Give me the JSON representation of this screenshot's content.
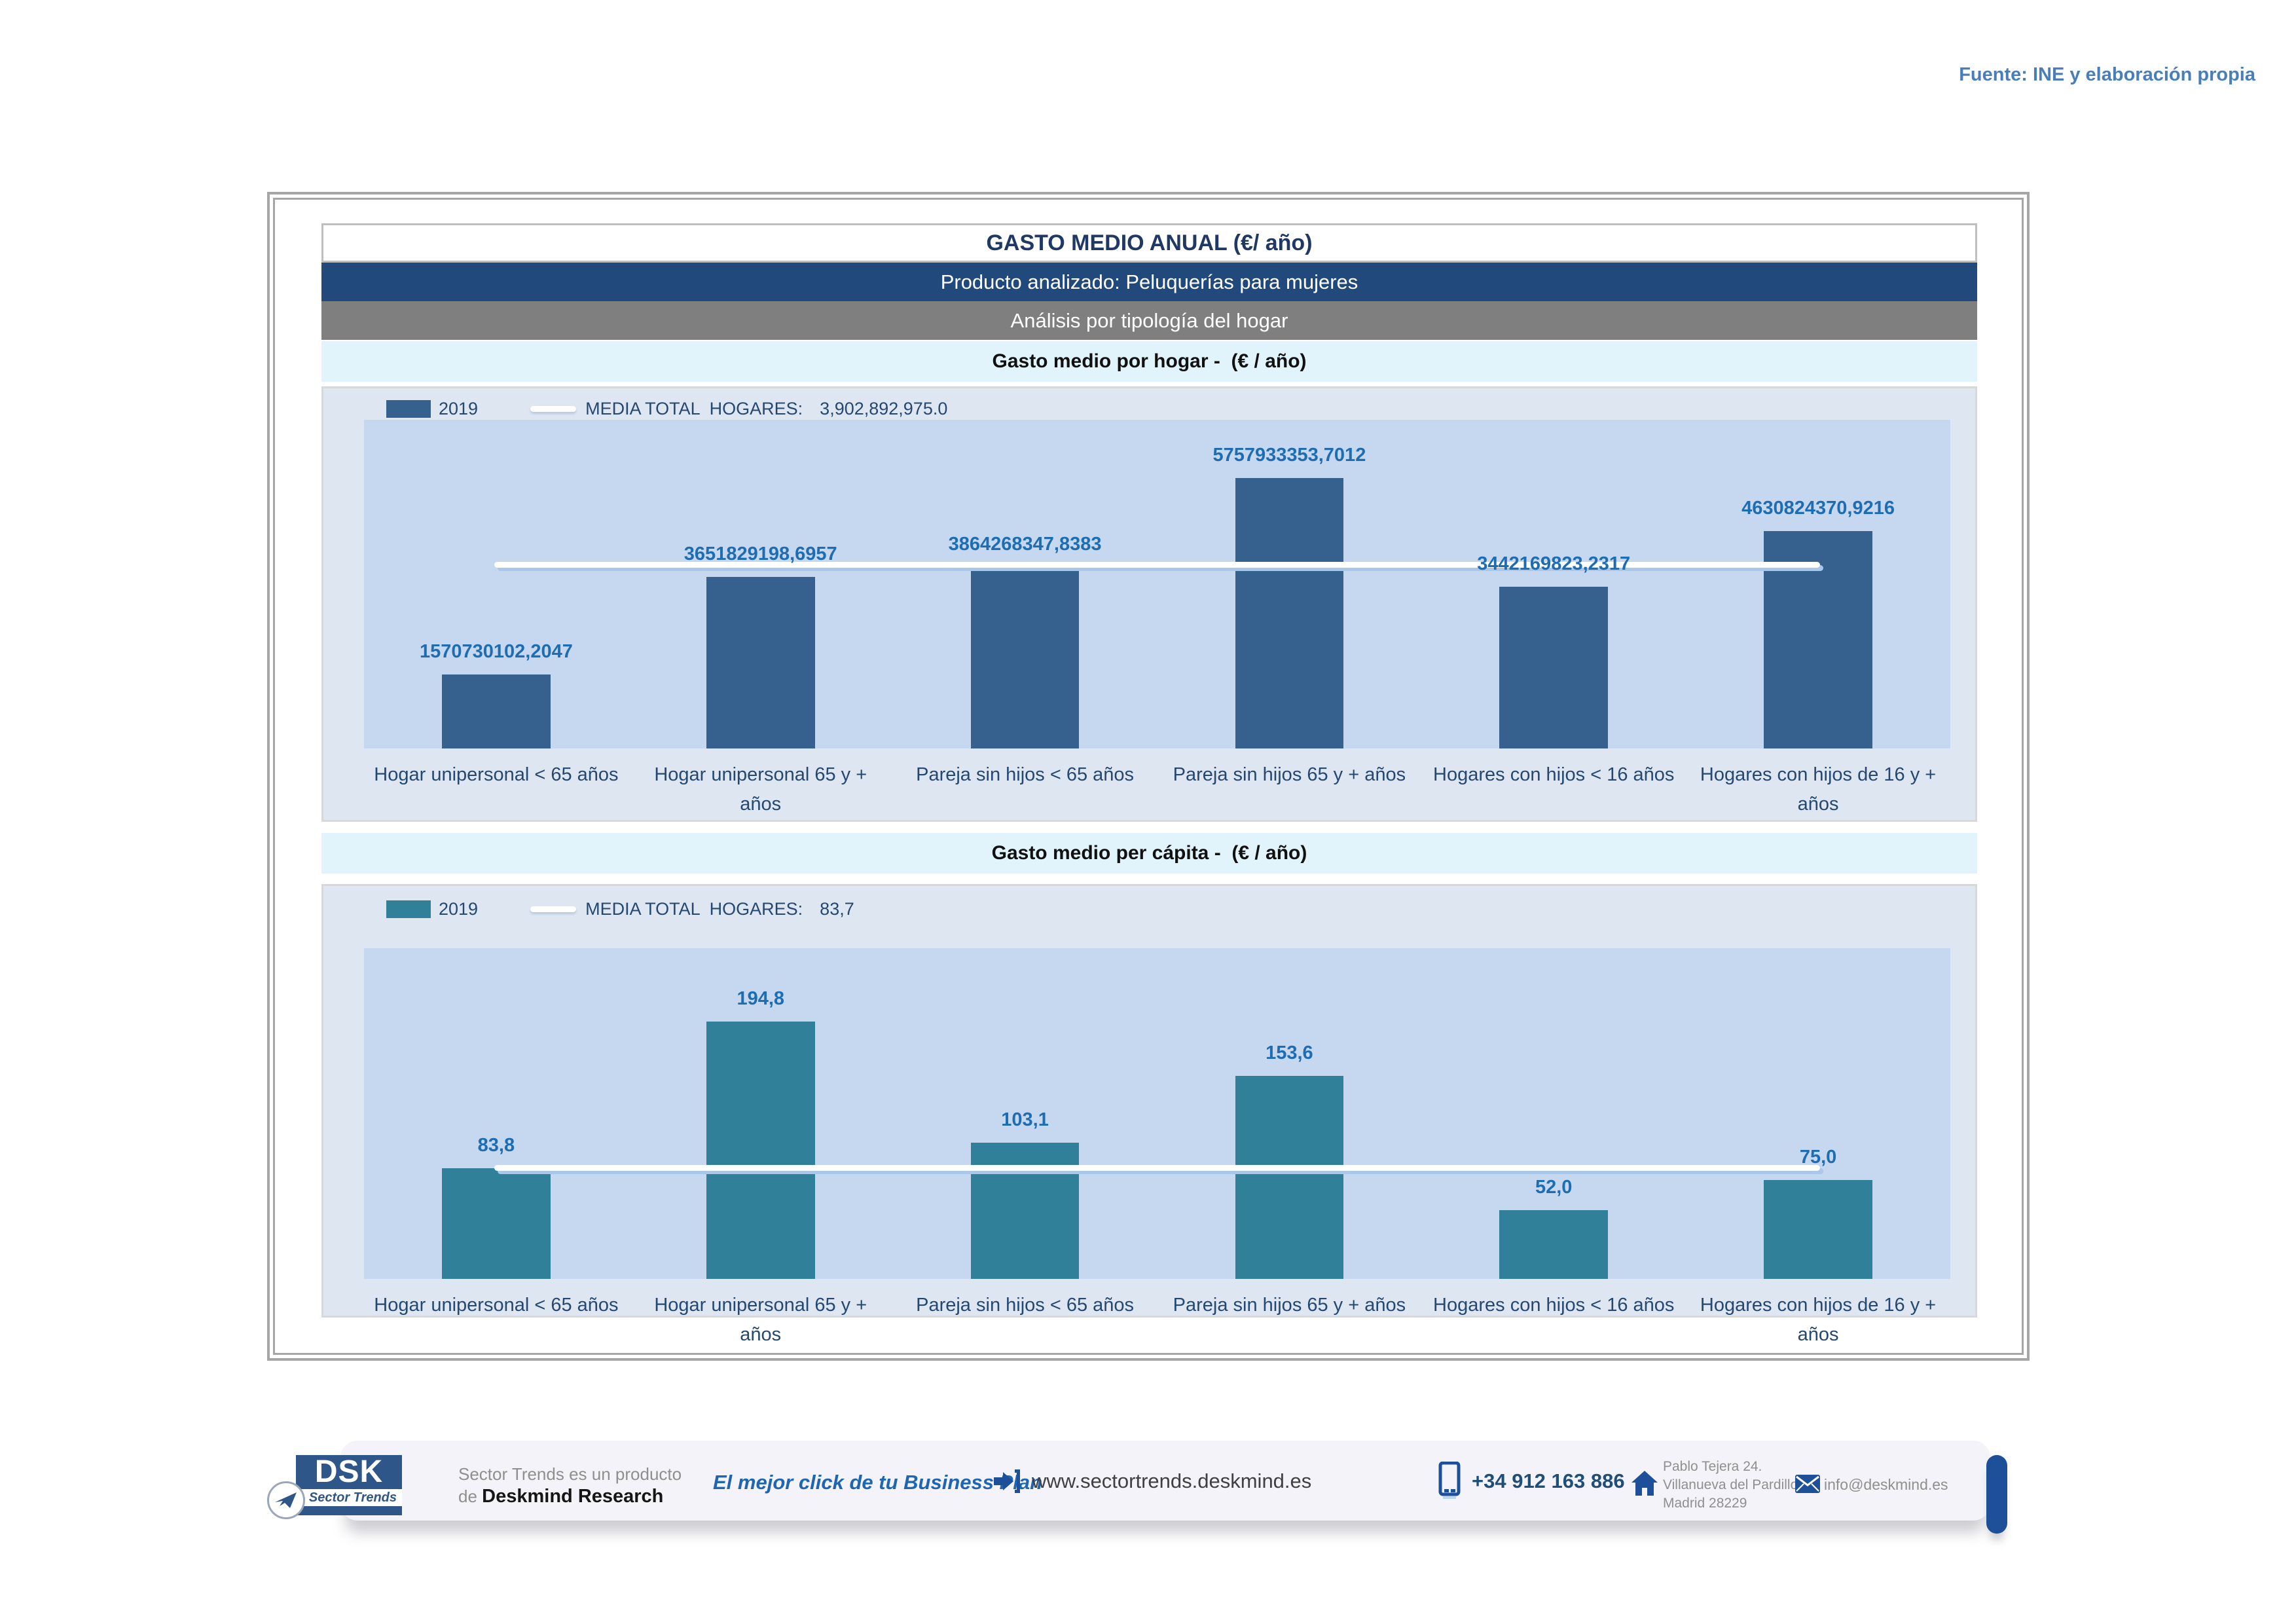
{
  "page": {
    "source_note": "Fuente: INE y elaboración propia"
  },
  "header": {
    "title": "GASTO MEDIO ANUAL (€/ año)",
    "product": "Producto analizado: Peluquerías para mujeres",
    "analysis": "Análisis por tipología del hogar"
  },
  "chart_data": [
    {
      "type": "bar",
      "title": "Gasto medio por hogar -  (€ / año)",
      "legend": {
        "year": "2019",
        "media_label": "MEDIA TOTAL  HOGARES:",
        "media_value": "3,902,892,975.0"
      },
      "categories": [
        "Hogar unipersonal < 65 años",
        "Hogar unipersonal  65 y + años",
        "Pareja sin hijos < 65 años",
        "Pareja sin hijos 65 y + años",
        "Hogares con hijos < 16 años",
        "Hogares con hijos de 16 y + años"
      ],
      "values": [
        1570730102.2047,
        3651829198.6957,
        3864268347.8383,
        5757933353.7012,
        3442169823.2317,
        4630824370.9216
      ],
      "value_labels": [
        "1570730102,2047",
        "3651829198,6957",
        "3864268347,8383",
        "5757933353,7012",
        "3442169823,2317",
        "4630824370,9216"
      ],
      "media": 3902892975.0,
      "ylim": [
        0,
        7000000000
      ],
      "xlabel": "",
      "ylabel": "",
      "grid": false,
      "legend_position": "top-left",
      "bar_color": "#36608e",
      "media_line_color": "#ffffff"
    },
    {
      "type": "bar",
      "title": "Gasto medio per cápita -  (€ / año)",
      "legend": {
        "year": "2019",
        "media_label": "MEDIA TOTAL  HOGARES:",
        "media_value": "83,7"
      },
      "categories": [
        "Hogar unipersonal < 65 años",
        "Hogar unipersonal  65 y + años",
        "Pareja sin hijos < 65 años",
        "Pareja sin hijos 65 y + años",
        "Hogares con hijos < 16 años",
        "Hogares con hijos de 16 y + años"
      ],
      "values": [
        83.8,
        194.8,
        103.1,
        153.6,
        52.0,
        75.0
      ],
      "value_labels": [
        "83,8",
        "194,8",
        "103,1",
        "153,6",
        "52,0",
        "75,0"
      ],
      "media": 83.7,
      "ylim": [
        0,
        250
      ],
      "xlabel": "",
      "ylabel": "",
      "grid": false,
      "legend_position": "top-left",
      "bar_color": "#2f8098",
      "media_line_color": "#ffffff"
    }
  ],
  "footer": {
    "logo": {
      "acronym": "DSK",
      "sublabel": "Sector Trends"
    },
    "product_line1": "Sector Trends es un producto",
    "product_line2_prefix": "de ",
    "product_line2_bold": "Deskmind Research",
    "tagline": "El mejor click de tu Business Plan",
    "website": "www.sectortrends.deskmind.es",
    "phone": "+34 912 163 886",
    "address_line1": "Pablo Tejera 24.",
    "address_line2": "Villanueva del Pardillo.",
    "address_line3": "Madrid 28229",
    "email": "info@deskmind.es"
  }
}
